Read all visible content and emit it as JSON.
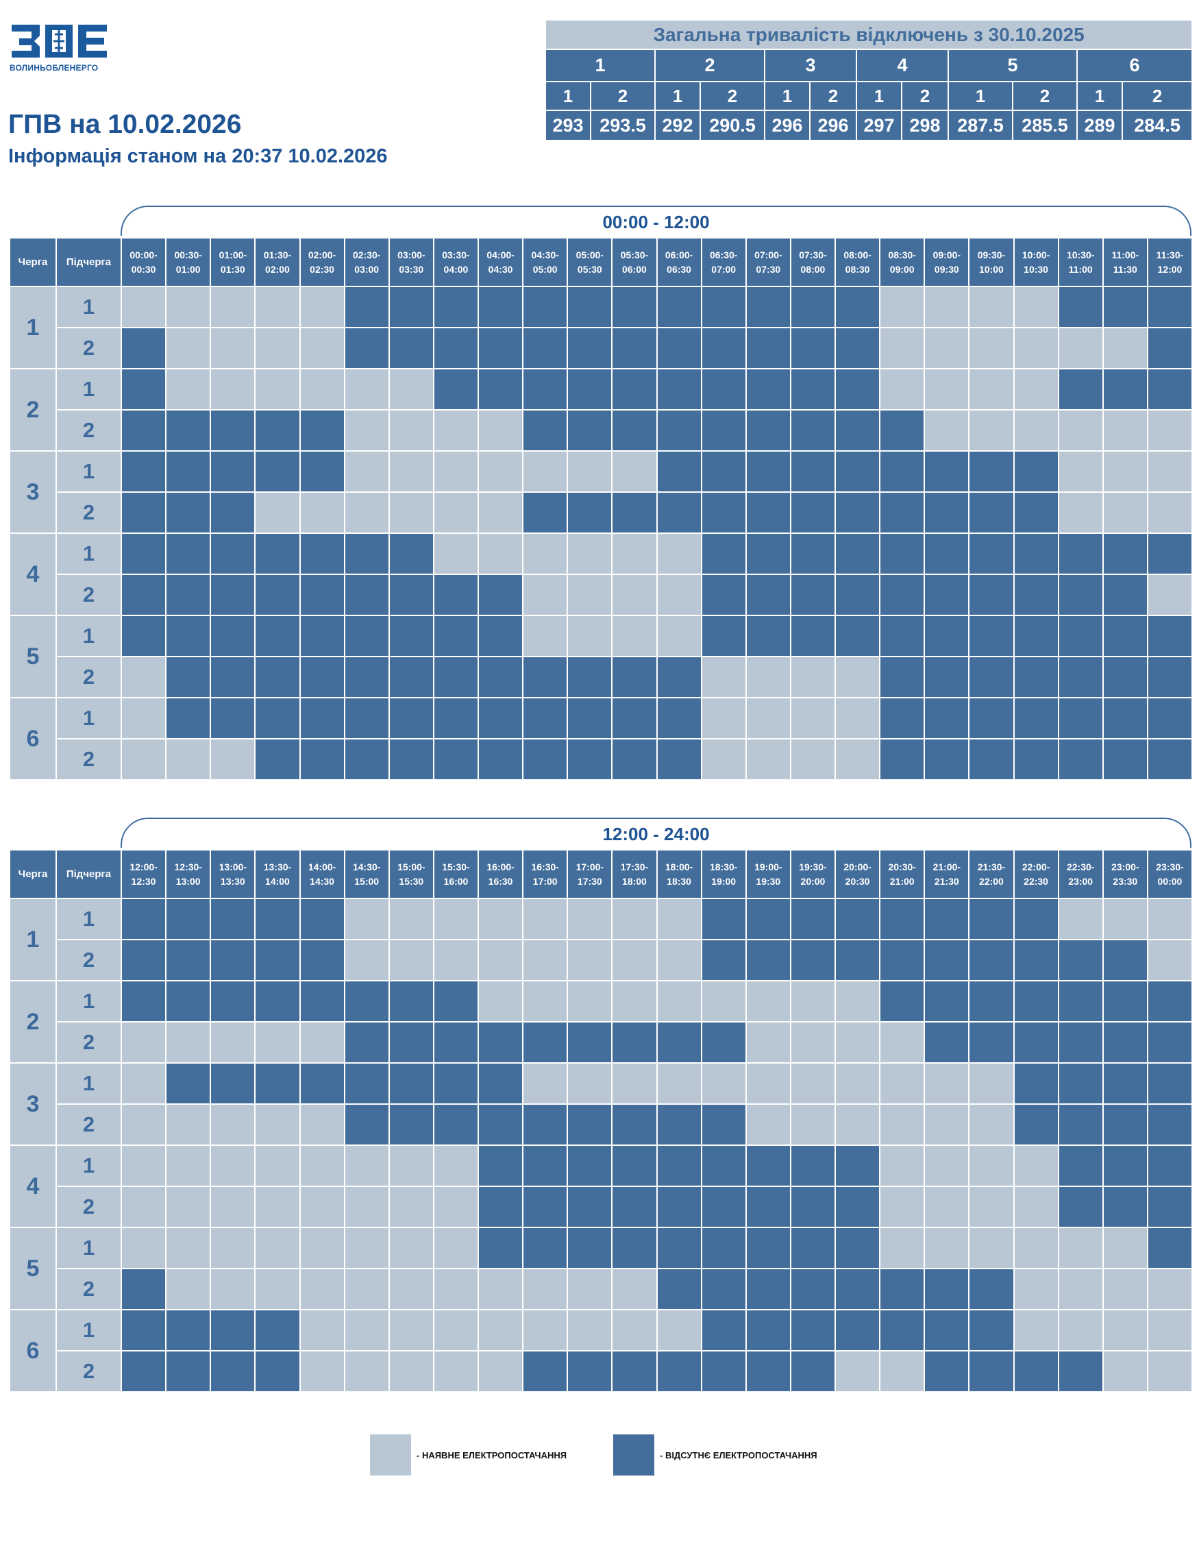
{
  "logo": {
    "letters": "ЗОЕ",
    "caption": "ВОЛИНЬОБЛЕНЕРГО"
  },
  "title": "ГПВ на 10.02.2026",
  "subtitle": "Інформація станом на 20:37 10.02.2026",
  "summary": {
    "title": "Загальна тривалість відключень з 30.10.2025",
    "groups": [
      "1",
      "2",
      "3",
      "4",
      "5",
      "6"
    ],
    "subgroups": [
      "1",
      "2",
      "1",
      "2",
      "1",
      "2",
      "1",
      "2",
      "1",
      "2",
      "1",
      "2"
    ],
    "values": [
      "293",
      "293.5",
      "292",
      "290.5",
      "296",
      "296",
      "297",
      "298",
      "287.5",
      "285.5",
      "289",
      "284.5"
    ]
  },
  "headers": {
    "queue": "Черга",
    "subqueue": "Підчерга"
  },
  "periods": [
    {
      "title": "00:00 - 12:00",
      "slots": [
        "00:00-00:30",
        "00:30-01:00",
        "01:00-01:30",
        "01:30-02:00",
        "02:00-02:30",
        "02:30-03:00",
        "03:00-03:30",
        "03:30-04:00",
        "04:00-04:30",
        "04:30-05:00",
        "05:00-05:30",
        "05:30-06:00",
        "06:00-06:30",
        "06:30-07:00",
        "07:00-07:30",
        "07:30-08:00",
        "08:00-08:30",
        "08:30-09:00",
        "09:00-09:30",
        "09:30-10:00",
        "10:00-10:30",
        "10:30-11:00",
        "11:00-11:30",
        "11:30-12:00"
      ],
      "rows": [
        {
          "queue": "1",
          "sub": "1",
          "cells": "000001111111111110000111"
        },
        {
          "queue": "1",
          "sub": "2",
          "cells": "100001111111111110000001"
        },
        {
          "queue": "2",
          "sub": "1",
          "cells": "100000011111111110000111"
        },
        {
          "queue": "2",
          "sub": "2",
          "cells": "111110000111111111000000"
        },
        {
          "queue": "3",
          "sub": "1",
          "cells": "111110000000111111111000"
        },
        {
          "queue": "3",
          "sub": "2",
          "cells": "111000000111111111111000"
        },
        {
          "queue": "4",
          "sub": "1",
          "cells": "111111100000011111111111"
        },
        {
          "queue": "4",
          "sub": "2",
          "cells": "111111111000011111111110"
        },
        {
          "queue": "5",
          "sub": "1",
          "cells": "111111111000011111111111"
        },
        {
          "queue": "5",
          "sub": "2",
          "cells": "011111111111100001111111"
        },
        {
          "queue": "6",
          "sub": "1",
          "cells": "011111111111100001111111"
        },
        {
          "queue": "6",
          "sub": "2",
          "cells": "000111111111100001111111"
        }
      ]
    },
    {
      "title": "12:00 - 24:00",
      "slots": [
        "12:00-12:30",
        "12:30-13:00",
        "13:00-13:30",
        "13:30-14:00",
        "14:00-14:30",
        "14:30-15:00",
        "15:00-15:30",
        "15:30-16:00",
        "16:00-16:30",
        "16:30-17:00",
        "17:00-17:30",
        "17:30-18:00",
        "18:00-18:30",
        "18:30-19:00",
        "19:00-19:30",
        "19:30-20:00",
        "20:00-20:30",
        "20:30-21:00",
        "21:00-21:30",
        "21:30-22:00",
        "22:00-22:30",
        "22:30-23:00",
        "23:00-23:30",
        "23:30-00:00"
      ],
      "rows": [
        {
          "queue": "1",
          "sub": "1",
          "cells": "111110000000011111111000"
        },
        {
          "queue": "1",
          "sub": "2",
          "cells": "111110000000011111111110"
        },
        {
          "queue": "2",
          "sub": "1",
          "cells": "111111110000000001111111"
        },
        {
          "queue": "2",
          "sub": "2",
          "cells": "000001111111110000111111"
        },
        {
          "queue": "3",
          "sub": "1",
          "cells": "011111111000000000001111"
        },
        {
          "queue": "3",
          "sub": "2",
          "cells": "000001111111110000001111"
        },
        {
          "queue": "4",
          "sub": "1",
          "cells": "000000001111111110000111"
        },
        {
          "queue": "4",
          "sub": "2",
          "cells": "000000001111111110000111"
        },
        {
          "queue": "5",
          "sub": "1",
          "cells": "000000001111111110000001"
        },
        {
          "queue": "5",
          "sub": "2",
          "cells": "100000000000111111110000"
        },
        {
          "queue": "6",
          "sub": "1",
          "cells": "111100000000011111110000"
        },
        {
          "queue": "6",
          "sub": "2",
          "cells": "111100000111111100111100"
        }
      ]
    }
  ],
  "legend": {
    "available": "- НАЯВНЕ ЕЛЕКТРОПОСТАЧАННЯ",
    "unavailable": "- ВІДСУТНЄ ЕЛЕКТРОПОСТАЧАННЯ"
  },
  "colors": {
    "on": "#b9c6d4",
    "off": "#436d9b",
    "title": "#1f5494"
  }
}
